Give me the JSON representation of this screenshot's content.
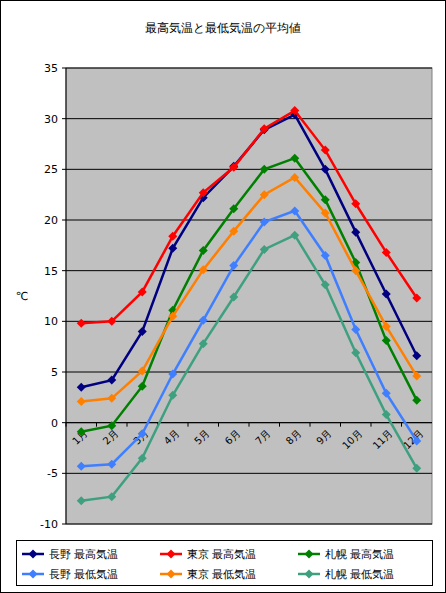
{
  "chart_data": {
    "type": "line",
    "title": "最高気温と最低気温の平均値",
    "y_label": "℃",
    "categories": [
      "1月",
      "2月",
      "3月",
      "4月",
      "5月",
      "6月",
      "7月",
      "8月",
      "9月",
      "10月",
      "11月",
      "12月"
    ],
    "ylim": [
      -10,
      35
    ],
    "yticks": [
      -10,
      -5,
      0,
      5,
      10,
      15,
      20,
      25,
      30,
      35
    ],
    "grid": true,
    "legend": "bottom",
    "series": [
      {
        "name": "長野 最高気温",
        "color": "#000080",
        "marker": "diamond",
        "values": [
          3.5,
          4.2,
          9.0,
          17.2,
          22.2,
          25.3,
          28.9,
          30.4,
          25.0,
          18.8,
          12.7,
          6.6
        ]
      },
      {
        "name": "東京 最高気温",
        "color": "#ff0000",
        "marker": "diamond",
        "values": [
          9.8,
          10.0,
          12.9,
          18.4,
          22.7,
          25.2,
          29.0,
          30.8,
          26.9,
          21.6,
          16.8,
          12.3
        ]
      },
      {
        "name": "札幌 最高気温",
        "color": "#008000",
        "marker": "diamond",
        "values": [
          -0.9,
          -0.3,
          3.6,
          11.1,
          17.0,
          21.1,
          25.0,
          26.1,
          22.0,
          15.8,
          8.1,
          2.2
        ]
      },
      {
        "name": "長野 最低気温",
        "color": "#3f7fff",
        "marker": "diamond",
        "values": [
          -4.3,
          -4.1,
          -1.1,
          4.8,
          10.1,
          15.5,
          19.8,
          20.9,
          16.5,
          9.2,
          2.9,
          -1.8
        ]
      },
      {
        "name": "東京 最低気温",
        "color": "#ff8000",
        "marker": "diamond",
        "values": [
          2.1,
          2.4,
          5.1,
          10.5,
          15.1,
          18.9,
          22.5,
          24.2,
          20.7,
          15.0,
          9.5,
          4.6
        ]
      },
      {
        "name": "札幌 最低気温",
        "color": "#3fa080",
        "marker": "diamond",
        "values": [
          -7.7,
          -7.3,
          -3.5,
          2.7,
          7.8,
          12.4,
          17.1,
          18.5,
          13.6,
          6.9,
          0.8,
          -4.5
        ]
      }
    ]
  }
}
